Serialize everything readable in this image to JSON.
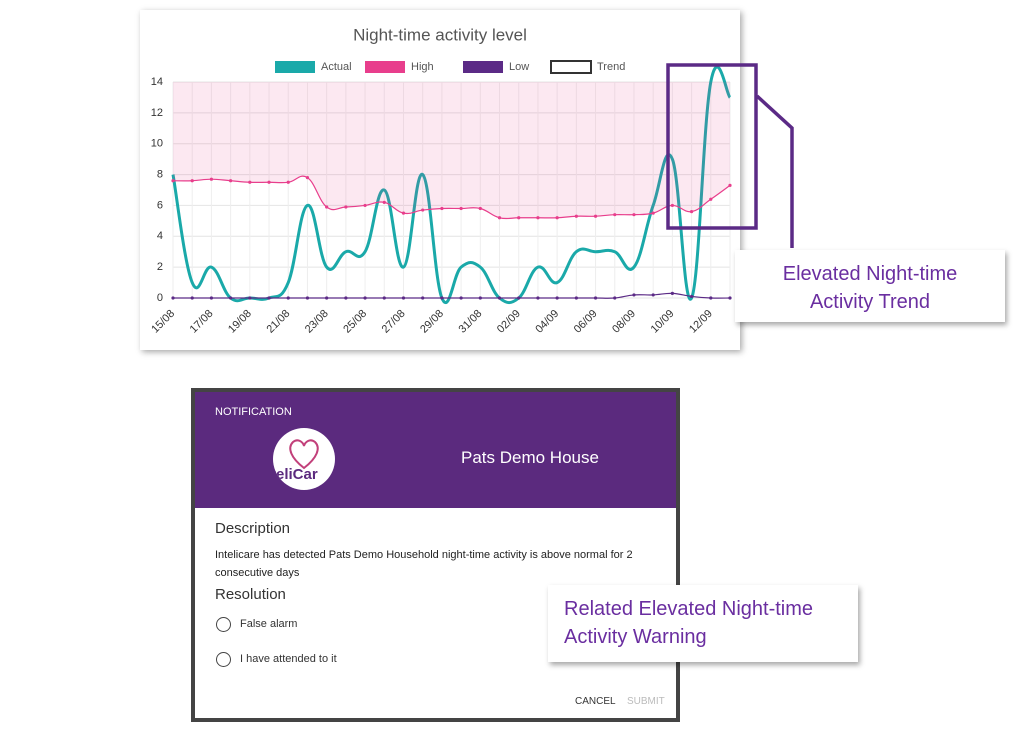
{
  "chart_data": {
    "type": "line",
    "title": "Night-time activity level",
    "categories": [
      "15/08",
      null,
      "17/08",
      null,
      "19/08",
      null,
      "21/08",
      null,
      "23/08",
      null,
      "25/08",
      null,
      "27/08",
      null,
      "29/08",
      null,
      "31/08",
      null,
      "02/09",
      null,
      "04/09",
      null,
      "06/09",
      null,
      "08/09",
      null,
      "10/09",
      null,
      "12/09",
      null
    ],
    "series": [
      {
        "name": "Actual",
        "color": "#1aa9a9",
        "values": [
          8,
          1,
          2,
          0,
          0,
          0,
          1,
          6,
          2,
          3,
          3,
          7,
          2,
          8,
          0,
          2,
          2,
          0,
          0,
          2,
          1,
          3,
          3,
          3,
          2,
          6,
          9,
          0,
          14,
          13
        ]
      },
      {
        "name": "High",
        "color": "#e83e8c",
        "values": [
          7.6,
          7.6,
          7.7,
          7.6,
          7.5,
          7.5,
          7.5,
          7.8,
          5.9,
          5.9,
          6.0,
          6.2,
          5.5,
          5.7,
          5.8,
          5.8,
          5.8,
          5.2,
          5.2,
          5.2,
          5.2,
          5.3,
          5.3,
          5.4,
          5.4,
          5.5,
          6.0,
          5.6,
          6.4,
          7.3
        ]
      },
      {
        "name": "Low",
        "color": "#5b2a86",
        "values": [
          0,
          0,
          0,
          0,
          0,
          0,
          0,
          0,
          0,
          0,
          0,
          0,
          0,
          0,
          0,
          0,
          0,
          0,
          0,
          0,
          0,
          0,
          0,
          0,
          0.2,
          0.2,
          0.3,
          0.1,
          0,
          0
        ]
      },
      {
        "name": "Trend",
        "color": "#333333",
        "values": [
          null,
          null,
          null,
          null,
          null,
          null,
          null,
          null,
          null,
          null,
          null,
          null,
          null,
          null,
          null,
          null,
          null,
          null,
          null,
          null,
          null,
          null,
          null,
          null,
          null,
          null,
          null,
          null,
          null,
          null
        ]
      }
    ],
    "ylim": [
      0,
      14
    ],
    "yticks": [
      0,
      2,
      4,
      6,
      8,
      10,
      12,
      14
    ],
    "grid": true
  },
  "callout_trend": "Elevated Night-time Activity Trend",
  "notification": {
    "header": "NOTIFICATION",
    "logo": "teliCar",
    "title": "Pats Demo House",
    "description_label": "Description",
    "description": "Intelicare has detected Pats Demo Household night-time activity is above normal for 2 consecutive days",
    "resolution_label": "Resolution",
    "options": [
      "False alarm",
      "I have attended to it"
    ],
    "buttons": [
      "CANCEL",
      "SUBMIT"
    ]
  },
  "callout_warning": "Related Elevated Night-time Activity Warning"
}
